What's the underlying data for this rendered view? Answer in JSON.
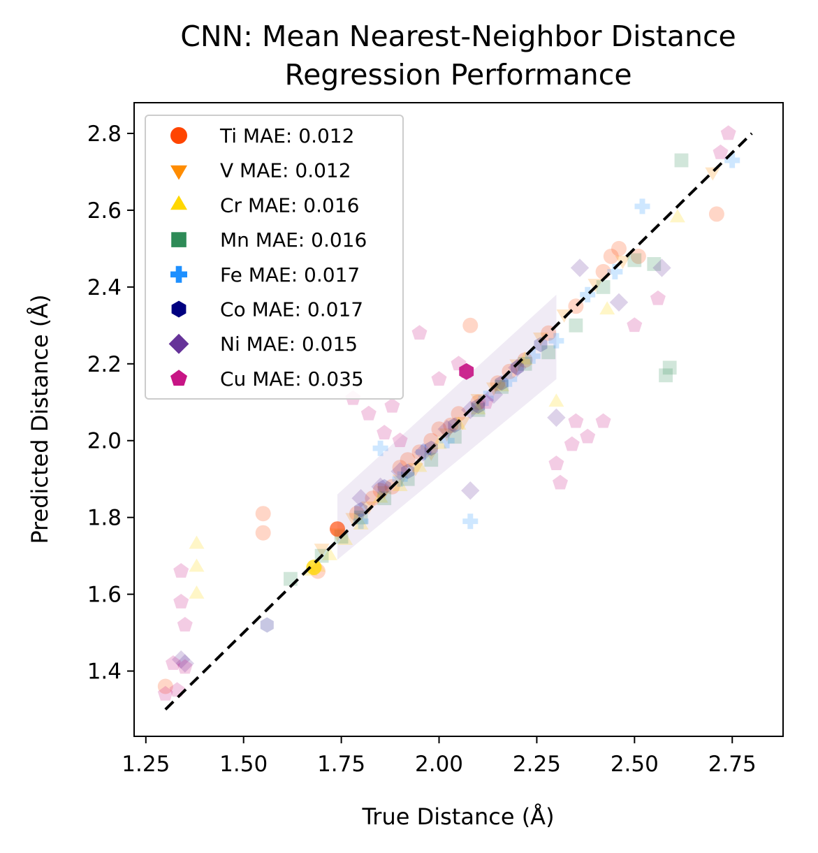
{
  "chart_data": {
    "type": "scatter",
    "title_line1": "CNN: Mean Nearest-Neighbor Distance",
    "title_line2": "Regression Performance",
    "xlabel": "True Distance (Å)",
    "ylabel": "Predicted Distance (Å)",
    "xlim": [
      1.22,
      2.88
    ],
    "ylim": [
      1.23,
      2.88
    ],
    "xticks": [
      "1.25",
      "1.50",
      "1.75",
      "2.00",
      "2.25",
      "2.50",
      "2.75"
    ],
    "yticks": [
      "1.4",
      "1.6",
      "1.8",
      "2.0",
      "2.2",
      "2.4",
      "2.6",
      "2.8"
    ],
    "grid": false,
    "legend_position": "upper left",
    "reference_line": {
      "style": "dashed",
      "color": "#000000",
      "from": [
        1.3,
        1.3
      ],
      "to": [
        2.8,
        2.8
      ]
    },
    "series": [
      {
        "name": "Ti MAE: 0.012",
        "color": "#ff4500",
        "marker": "circle",
        "mae": 0.012,
        "x": [
          1.3,
          1.55,
          1.55,
          1.69,
          1.74,
          1.79,
          1.83,
          1.85,
          1.88,
          1.9,
          1.92,
          1.95,
          1.98,
          2.0,
          2.03,
          2.05,
          2.08,
          2.1,
          2.15,
          2.18,
          2.22,
          2.28,
          2.35,
          2.42,
          2.44,
          2.46,
          2.51,
          2.71
        ],
        "y": [
          1.36,
          1.81,
          1.76,
          1.66,
          1.77,
          1.81,
          1.85,
          1.87,
          1.88,
          1.93,
          1.95,
          1.97,
          2.0,
          2.03,
          2.04,
          2.07,
          2.3,
          2.1,
          2.15,
          2.18,
          2.21,
          2.28,
          2.35,
          2.44,
          2.48,
          2.5,
          2.48,
          2.59
        ]
      },
      {
        "name": "V MAE: 0.012",
        "color": "#ff8c00",
        "marker": "triangle-down",
        "mae": 0.012,
        "x": [
          1.7,
          1.74,
          1.78,
          1.82,
          1.86,
          1.9,
          1.94,
          1.98,
          2.02,
          2.06,
          2.1,
          2.14,
          2.2,
          2.26,
          2.32,
          2.4,
          2.47,
          2.7
        ],
        "y": [
          1.72,
          1.76,
          1.8,
          1.83,
          1.87,
          1.9,
          1.93,
          1.97,
          2.02,
          2.05,
          2.11,
          2.14,
          2.2,
          2.27,
          2.33,
          2.41,
          2.47,
          2.7
        ]
      },
      {
        "name": "Cr MAE: 0.016",
        "color": "#ffd700",
        "marker": "triangle-up",
        "mae": 0.016,
        "x": [
          1.38,
          1.38,
          1.38,
          1.67,
          1.69,
          1.72,
          1.76,
          1.8,
          1.85,
          1.9,
          1.95,
          2.0,
          2.05,
          2.1,
          2.16,
          2.22,
          2.3,
          2.43,
          2.61
        ],
        "y": [
          1.73,
          1.67,
          1.6,
          1.66,
          1.67,
          1.7,
          1.74,
          1.78,
          1.85,
          1.88,
          1.93,
          1.99,
          2.04,
          2.08,
          2.14,
          2.21,
          2.1,
          2.34,
          2.58
        ]
      },
      {
        "name": "Mn MAE: 0.016",
        "color": "#2e8b57",
        "marker": "square",
        "mae": 0.016,
        "x": [
          1.62,
          1.7,
          1.75,
          1.8,
          1.86,
          1.92,
          1.98,
          2.04,
          2.1,
          2.16,
          2.22,
          2.28,
          2.35,
          2.42,
          2.5,
          2.55,
          2.58,
          2.59,
          2.62
        ],
        "y": [
          1.64,
          1.7,
          1.75,
          1.8,
          1.85,
          1.9,
          1.95,
          2.01,
          2.08,
          2.14,
          2.2,
          2.23,
          2.3,
          2.4,
          2.47,
          2.46,
          2.17,
          2.19,
          2.73
        ]
      },
      {
        "name": "Fe MAE: 0.017",
        "color": "#1e90ff",
        "marker": "plus",
        "mae": 0.017,
        "x": [
          1.8,
          1.85,
          1.9,
          1.96,
          2.02,
          2.08,
          2.12,
          2.18,
          2.24,
          2.3,
          2.38,
          2.45,
          2.52,
          2.75
        ],
        "y": [
          1.79,
          1.98,
          1.9,
          1.97,
          2.0,
          1.79,
          2.11,
          2.16,
          2.22,
          2.26,
          2.38,
          2.44,
          2.61,
          2.73
        ]
      },
      {
        "name": "Co MAE: 0.017",
        "color": "#000080",
        "marker": "hexagon",
        "mae": 0.017,
        "x": [
          1.56,
          1.8,
          1.86,
          1.92,
          1.98,
          2.04,
          2.1,
          2.16,
          2.2,
          2.26
        ],
        "y": [
          1.52,
          1.82,
          1.88,
          1.92,
          1.98,
          2.04,
          2.09,
          2.15,
          2.19,
          2.25
        ]
      },
      {
        "name": "Ni MAE: 0.015",
        "color": "#663399",
        "marker": "diamond",
        "mae": 0.015,
        "x": [
          1.34,
          1.35,
          1.8,
          1.85,
          1.9,
          1.96,
          2.02,
          2.08,
          2.08,
          2.14,
          2.2,
          2.3,
          2.36,
          2.46,
          2.57
        ],
        "y": [
          1.43,
          1.42,
          1.85,
          1.88,
          1.92,
          1.97,
          2.03,
          1.87,
          2.08,
          2.12,
          2.19,
          2.06,
          2.45,
          2.36,
          2.45
        ]
      },
      {
        "name": "Cu MAE: 0.035",
        "color": "#c71585",
        "marker": "pentagon",
        "mae": 0.035,
        "x": [
          1.3,
          1.32,
          1.33,
          1.34,
          1.34,
          1.35,
          1.35,
          1.78,
          1.82,
          1.86,
          1.88,
          1.9,
          1.95,
          2.0,
          2.05,
          2.07,
          2.12,
          2.3,
          2.31,
          2.34,
          2.35,
          2.38,
          2.42,
          2.5,
          2.56,
          2.72,
          2.74
        ],
        "y": [
          1.34,
          1.42,
          1.35,
          1.66,
          1.58,
          1.52,
          1.41,
          2.11,
          2.07,
          2.02,
          2.09,
          2.0,
          2.28,
          2.16,
          2.2,
          2.18,
          2.1,
          1.94,
          1.89,
          1.99,
          2.05,
          2.01,
          2.05,
          2.3,
          2.37,
          2.75,
          2.8
        ]
      }
    ]
  }
}
